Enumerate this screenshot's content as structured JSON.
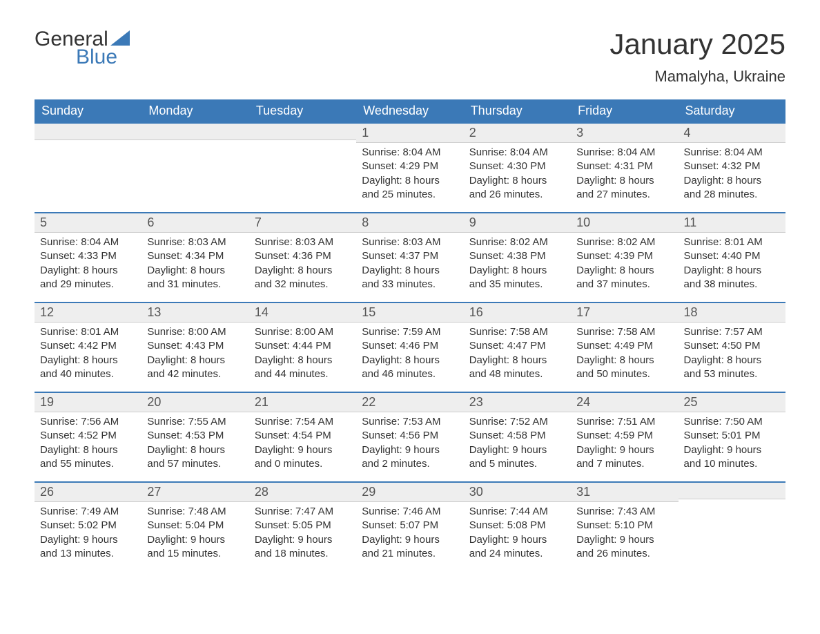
{
  "logo": {
    "line1": "General",
    "line2": "Blue",
    "accent_color": "#3b79b7"
  },
  "title": "January 2025",
  "location": "Mamalyha, Ukraine",
  "colors": {
    "header_bg": "#3b79b7",
    "header_text": "#ffffff",
    "daynum_bg": "#eeeeee",
    "row_top_border": "#3b79b7",
    "text": "#333333",
    "background": "#ffffff"
  },
  "day_headers": [
    "Sunday",
    "Monday",
    "Tuesday",
    "Wednesday",
    "Thursday",
    "Friday",
    "Saturday"
  ],
  "weeks": [
    [
      null,
      null,
      null,
      {
        "n": "1",
        "sunrise": "8:04 AM",
        "sunset": "4:29 PM",
        "dl_h": "8",
        "dl_m": "25"
      },
      {
        "n": "2",
        "sunrise": "8:04 AM",
        "sunset": "4:30 PM",
        "dl_h": "8",
        "dl_m": "26"
      },
      {
        "n": "3",
        "sunrise": "8:04 AM",
        "sunset": "4:31 PM",
        "dl_h": "8",
        "dl_m": "27"
      },
      {
        "n": "4",
        "sunrise": "8:04 AM",
        "sunset": "4:32 PM",
        "dl_h": "8",
        "dl_m": "28"
      }
    ],
    [
      {
        "n": "5",
        "sunrise": "8:04 AM",
        "sunset": "4:33 PM",
        "dl_h": "8",
        "dl_m": "29"
      },
      {
        "n": "6",
        "sunrise": "8:03 AM",
        "sunset": "4:34 PM",
        "dl_h": "8",
        "dl_m": "31"
      },
      {
        "n": "7",
        "sunrise": "8:03 AM",
        "sunset": "4:36 PM",
        "dl_h": "8",
        "dl_m": "32"
      },
      {
        "n": "8",
        "sunrise": "8:03 AM",
        "sunset": "4:37 PM",
        "dl_h": "8",
        "dl_m": "33"
      },
      {
        "n": "9",
        "sunrise": "8:02 AM",
        "sunset": "4:38 PM",
        "dl_h": "8",
        "dl_m": "35"
      },
      {
        "n": "10",
        "sunrise": "8:02 AM",
        "sunset": "4:39 PM",
        "dl_h": "8",
        "dl_m": "37"
      },
      {
        "n": "11",
        "sunrise": "8:01 AM",
        "sunset": "4:40 PM",
        "dl_h": "8",
        "dl_m": "38"
      }
    ],
    [
      {
        "n": "12",
        "sunrise": "8:01 AM",
        "sunset": "4:42 PM",
        "dl_h": "8",
        "dl_m": "40"
      },
      {
        "n": "13",
        "sunrise": "8:00 AM",
        "sunset": "4:43 PM",
        "dl_h": "8",
        "dl_m": "42"
      },
      {
        "n": "14",
        "sunrise": "8:00 AM",
        "sunset": "4:44 PM",
        "dl_h": "8",
        "dl_m": "44"
      },
      {
        "n": "15",
        "sunrise": "7:59 AM",
        "sunset": "4:46 PM",
        "dl_h": "8",
        "dl_m": "46"
      },
      {
        "n": "16",
        "sunrise": "7:58 AM",
        "sunset": "4:47 PM",
        "dl_h": "8",
        "dl_m": "48"
      },
      {
        "n": "17",
        "sunrise": "7:58 AM",
        "sunset": "4:49 PM",
        "dl_h": "8",
        "dl_m": "50"
      },
      {
        "n": "18",
        "sunrise": "7:57 AM",
        "sunset": "4:50 PM",
        "dl_h": "8",
        "dl_m": "53"
      }
    ],
    [
      {
        "n": "19",
        "sunrise": "7:56 AM",
        "sunset": "4:52 PM",
        "dl_h": "8",
        "dl_m": "55"
      },
      {
        "n": "20",
        "sunrise": "7:55 AM",
        "sunset": "4:53 PM",
        "dl_h": "8",
        "dl_m": "57"
      },
      {
        "n": "21",
        "sunrise": "7:54 AM",
        "sunset": "4:54 PM",
        "dl_h": "9",
        "dl_m": "0"
      },
      {
        "n": "22",
        "sunrise": "7:53 AM",
        "sunset": "4:56 PM",
        "dl_h": "9",
        "dl_m": "2"
      },
      {
        "n": "23",
        "sunrise": "7:52 AM",
        "sunset": "4:58 PM",
        "dl_h": "9",
        "dl_m": "5"
      },
      {
        "n": "24",
        "sunrise": "7:51 AM",
        "sunset": "4:59 PM",
        "dl_h": "9",
        "dl_m": "7"
      },
      {
        "n": "25",
        "sunrise": "7:50 AM",
        "sunset": "5:01 PM",
        "dl_h": "9",
        "dl_m": "10"
      }
    ],
    [
      {
        "n": "26",
        "sunrise": "7:49 AM",
        "sunset": "5:02 PM",
        "dl_h": "9",
        "dl_m": "13"
      },
      {
        "n": "27",
        "sunrise": "7:48 AM",
        "sunset": "5:04 PM",
        "dl_h": "9",
        "dl_m": "15"
      },
      {
        "n": "28",
        "sunrise": "7:47 AM",
        "sunset": "5:05 PM",
        "dl_h": "9",
        "dl_m": "18"
      },
      {
        "n": "29",
        "sunrise": "7:46 AM",
        "sunset": "5:07 PM",
        "dl_h": "9",
        "dl_m": "21"
      },
      {
        "n": "30",
        "sunrise": "7:44 AM",
        "sunset": "5:08 PM",
        "dl_h": "9",
        "dl_m": "24"
      },
      {
        "n": "31",
        "sunrise": "7:43 AM",
        "sunset": "5:10 PM",
        "dl_h": "9",
        "dl_m": "26"
      },
      null
    ]
  ],
  "labels": {
    "sunrise": "Sunrise: ",
    "sunset": "Sunset: ",
    "daylight_prefix": "Daylight: ",
    "hours_word": " hours",
    "and_word": "and ",
    "minutes_word": " minutes."
  }
}
